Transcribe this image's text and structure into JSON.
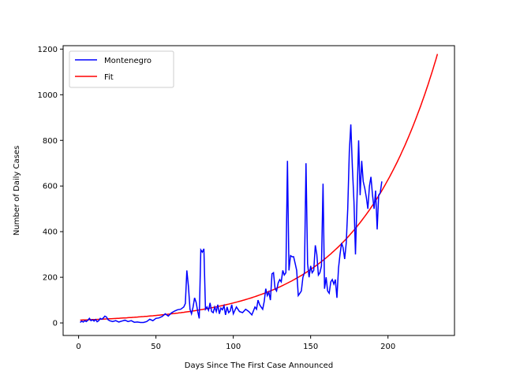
{
  "chart_data": {
    "type": "line",
    "title": "",
    "xlabel": "Days Since The First Case Announced",
    "ylabel": "Number of Daily Cases",
    "xlim": [
      -10,
      243
    ],
    "ylim": [
      -55,
      1215
    ],
    "xticks": [
      0,
      50,
      100,
      150,
      200
    ],
    "yticks": [
      0,
      200,
      400,
      600,
      800,
      1000,
      1200
    ],
    "grid": false,
    "legend": "top-left",
    "series": [
      {
        "name": "Montenegro",
        "color": "#0000ff",
        "points": [
          [
            1,
            2
          ],
          [
            2,
            8
          ],
          [
            3,
            4
          ],
          [
            4,
            10
          ],
          [
            5,
            6
          ],
          [
            6,
            12
          ],
          [
            7,
            20
          ],
          [
            8,
            10
          ],
          [
            9,
            14
          ],
          [
            10,
            8
          ],
          [
            11,
            15
          ],
          [
            12,
            5
          ],
          [
            13,
            10
          ],
          [
            14,
            20
          ],
          [
            15,
            16
          ],
          [
            16,
            22
          ],
          [
            17,
            30
          ],
          [
            18,
            26
          ],
          [
            19,
            14
          ],
          [
            20,
            10
          ],
          [
            22,
            6
          ],
          [
            24,
            10
          ],
          [
            26,
            4
          ],
          [
            28,
            8
          ],
          [
            30,
            12
          ],
          [
            32,
            6
          ],
          [
            34,
            10
          ],
          [
            36,
            3
          ],
          [
            38,
            4
          ],
          [
            40,
            2
          ],
          [
            42,
            2
          ],
          [
            44,
            6
          ],
          [
            46,
            16
          ],
          [
            48,
            10
          ],
          [
            50,
            20
          ],
          [
            52,
            22
          ],
          [
            54,
            28
          ],
          [
            56,
            40
          ],
          [
            58,
            30
          ],
          [
            60,
            44
          ],
          [
            62,
            52
          ],
          [
            64,
            58
          ],
          [
            66,
            60
          ],
          [
            68,
            70
          ],
          [
            69,
            85
          ],
          [
            70,
            230
          ],
          [
            71,
            160
          ],
          [
            72,
            60
          ],
          [
            73,
            40
          ],
          [
            74,
            70
          ],
          [
            75,
            110
          ],
          [
            76,
            90
          ],
          [
            77,
            50
          ],
          [
            78,
            20
          ],
          [
            79,
            320
          ],
          [
            80,
            310
          ],
          [
            81,
            325
          ],
          [
            82,
            60
          ],
          [
            83,
            70
          ],
          [
            84,
            55
          ],
          [
            85,
            88
          ],
          [
            86,
            50
          ],
          [
            87,
            45
          ],
          [
            88,
            70
          ],
          [
            89,
            50
          ],
          [
            90,
            80
          ],
          [
            91,
            40
          ],
          [
            92,
            65
          ],
          [
            93,
            58
          ],
          [
            94,
            75
          ],
          [
            95,
            35
          ],
          [
            96,
            70
          ],
          [
            97,
            45
          ],
          [
            98,
            52
          ],
          [
            99,
            80
          ],
          [
            100,
            40
          ],
          [
            102,
            70
          ],
          [
            104,
            50
          ],
          [
            106,
            45
          ],
          [
            108,
            60
          ],
          [
            110,
            50
          ],
          [
            112,
            35
          ],
          [
            114,
            70
          ],
          [
            115,
            60
          ],
          [
            116,
            100
          ],
          [
            117,
            80
          ],
          [
            118,
            70
          ],
          [
            119,
            60
          ],
          [
            120,
            95
          ],
          [
            121,
            150
          ],
          [
            122,
            120
          ],
          [
            123,
            135
          ],
          [
            124,
            100
          ],
          [
            125,
            215
          ],
          [
            126,
            220
          ],
          [
            127,
            150
          ],
          [
            128,
            140
          ],
          [
            129,
            175
          ],
          [
            130,
            190
          ],
          [
            131,
            180
          ],
          [
            132,
            230
          ],
          [
            133,
            210
          ],
          [
            134,
            220
          ],
          [
            135,
            710
          ],
          [
            136,
            230
          ],
          [
            137,
            295
          ],
          [
            138,
            290
          ],
          [
            139,
            290
          ],
          [
            140,
            260
          ],
          [
            141,
            230
          ],
          [
            142,
            120
          ],
          [
            143,
            130
          ],
          [
            144,
            140
          ],
          [
            145,
            200
          ],
          [
            146,
            220
          ],
          [
            147,
            700
          ],
          [
            148,
            260
          ],
          [
            149,
            200
          ],
          [
            150,
            250
          ],
          [
            151,
            220
          ],
          [
            152,
            230
          ],
          [
            153,
            340
          ],
          [
            154,
            300
          ],
          [
            155,
            210
          ],
          [
            156,
            220
          ],
          [
            157,
            250
          ],
          [
            158,
            610
          ],
          [
            159,
            150
          ],
          [
            160,
            200
          ],
          [
            161,
            140
          ],
          [
            162,
            130
          ],
          [
            163,
            180
          ],
          [
            164,
            190
          ],
          [
            165,
            170
          ],
          [
            166,
            190
          ],
          [
            167,
            110
          ],
          [
            168,
            240
          ],
          [
            169,
            300
          ],
          [
            170,
            350
          ],
          [
            171,
            330
          ],
          [
            172,
            280
          ],
          [
            173,
            350
          ],
          [
            174,
            500
          ],
          [
            175,
            750
          ],
          [
            176,
            870
          ],
          [
            177,
            680
          ],
          [
            178,
            530
          ],
          [
            179,
            300
          ],
          [
            180,
            550
          ],
          [
            181,
            800
          ],
          [
            182,
            560
          ],
          [
            183,
            710
          ],
          [
            184,
            620
          ],
          [
            185,
            590
          ],
          [
            186,
            550
          ],
          [
            187,
            500
          ],
          [
            188,
            600
          ],
          [
            189,
            640
          ],
          [
            190,
            560
          ],
          [
            191,
            500
          ],
          [
            192,
            580
          ],
          [
            193,
            410
          ],
          [
            194,
            560
          ],
          [
            195,
            570
          ],
          [
            196,
            620
          ]
        ]
      },
      {
        "name": "Fit",
        "color": "#ff0000",
        "model": {
          "a": 12.2,
          "b": 0.0197
        },
        "x_range": [
          1,
          232
        ]
      }
    ]
  }
}
